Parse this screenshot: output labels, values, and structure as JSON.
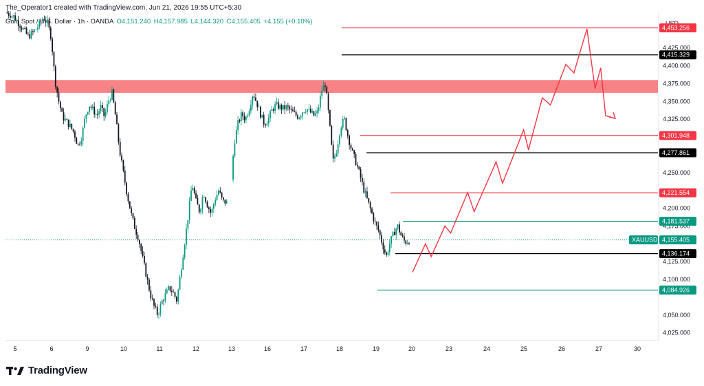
{
  "header": {
    "attribution": "The_Operator1 created with TradingView.com, Jun 21, 2026 19:55 UTC+5:30"
  },
  "symbol": {
    "name": "Gold Spot / U.S. Dollar · 1h · OANDA",
    "open": "O4,151.240",
    "high": "H4,157.985",
    "low": "L4,144.320",
    "close": "C4,155.405",
    "change": "+4.155 (+0.10%)"
  },
  "currency": "USD",
  "brand": "TradingView",
  "colors": {
    "bull": "#089981",
    "bear": "#131722",
    "resistance": "#f23645",
    "zone": "#f77c80",
    "support": "#089981",
    "neutral": "#000000"
  },
  "chart_data": {
    "type": "candlestick",
    "symbol": "XAUUSD",
    "current_price": 4155.405,
    "price_labels": [
      {
        "label": "4,453.256",
        "value": 4453.256,
        "kind": "resistance"
      },
      {
        "label": "4,415.329",
        "value": 4415.329,
        "kind": "neutral"
      },
      {
        "label": "4,301.948",
        "value": 4301.948,
        "kind": "resistance"
      },
      {
        "label": "4,277.861",
        "value": 4277.861,
        "kind": "neutral"
      },
      {
        "label": "4,221.554",
        "value": 4221.554,
        "kind": "resistance"
      },
      {
        "label": "4,181.537",
        "value": 4181.537,
        "kind": "support"
      },
      {
        "label": "4,155.405",
        "value": 4155.405,
        "kind": "current"
      },
      {
        "label": "4,136.174",
        "value": 4136.174,
        "kind": "neutral"
      },
      {
        "label": "4,084.926",
        "value": 4084.926,
        "kind": "support"
      }
    ],
    "y_ticks": [
      "4,425.000",
      "4,400.000",
      "4,375.000",
      "4,350.000",
      "4,325.000",
      "4,250.000",
      "4,200.000",
      "4,175.000",
      "4,125.000",
      "4,100.000",
      "4,050.000",
      "4,025.000"
    ],
    "y_range": [
      4014,
      4475
    ],
    "x_ticks": [
      "5",
      "6",
      "9",
      "10",
      "11",
      "12",
      "13",
      "16",
      "17",
      "18",
      "19",
      "20",
      "23",
      "24",
      "25",
      "26",
      "27",
      "30"
    ],
    "resistance_zone": [
      4362,
      4380
    ],
    "price_path": [
      [
        0,
        4475
      ],
      [
        2,
        4470
      ],
      [
        4,
        4456
      ],
      [
        6,
        4441
      ],
      [
        8,
        4451
      ],
      [
        10,
        4468
      ],
      [
        11,
        4460
      ],
      [
        12,
        4440
      ],
      [
        13,
        4380
      ],
      [
        14,
        4350
      ],
      [
        15,
        4328
      ],
      [
        16,
        4322
      ],
      [
        17,
        4315
      ],
      [
        18,
        4306
      ],
      [
        19,
        4288
      ],
      [
        20,
        4300
      ],
      [
        21,
        4330
      ],
      [
        22,
        4345
      ],
      [
        23,
        4338
      ],
      [
        24,
        4330
      ],
      [
        25,
        4342
      ],
      [
        26,
        4328
      ],
      [
        27,
        4350
      ],
      [
        28,
        4362
      ],
      [
        29,
        4325
      ],
      [
        30,
        4280
      ],
      [
        31,
        4248
      ],
      [
        32,
        4218
      ],
      [
        33,
        4192
      ],
      [
        34,
        4172
      ],
      [
        35,
        4156
      ],
      [
        36,
        4130
      ],
      [
        37,
        4105
      ],
      [
        38,
        4080
      ],
      [
        39,
        4062
      ],
      [
        40,
        4050
      ],
      [
        41,
        4068
      ],
      [
        42,
        4078
      ],
      [
        43,
        4088
      ],
      [
        44,
        4082
      ],
      [
        45,
        4070
      ],
      [
        46,
        4110
      ],
      [
        47,
        4150
      ],
      [
        48,
        4190
      ],
      [
        49,
        4235
      ],
      [
        50,
        4210
      ],
      [
        51,
        4195
      ],
      [
        52,
        4222
      ],
      [
        53,
        4205
      ],
      [
        54,
        4192
      ],
      [
        55,
        4212
      ],
      [
        56,
        4225
      ],
      [
        57,
        4210
      ],
      [
        58,
        4208
      ],
      [
        59,
        4212
      ],
      [
        60,
        4290
      ],
      [
        61,
        4318
      ],
      [
        62,
        4332
      ],
      [
        63,
        4325
      ],
      [
        64,
        4340
      ],
      [
        65,
        4362
      ],
      [
        66,
        4348
      ],
      [
        67,
        4332
      ],
      [
        68,
        4318
      ],
      [
        69,
        4325
      ],
      [
        70,
        4338
      ],
      [
        71,
        4345
      ],
      [
        72,
        4342
      ],
      [
        73,
        4340
      ],
      [
        74,
        4342
      ],
      [
        75,
        4336
      ],
      [
        76,
        4332
      ],
      [
        77,
        4328
      ],
      [
        78,
        4336
      ],
      [
        79,
        4340
      ],
      [
        80,
        4335
      ],
      [
        81,
        4330
      ],
      [
        82,
        4335
      ],
      [
        83,
        4365
      ],
      [
        84,
        4375
      ],
      [
        85,
        4325
      ],
      [
        86,
        4265
      ],
      [
        87,
        4282
      ],
      [
        88,
        4315
      ],
      [
        89,
        4325
      ],
      [
        90,
        4300
      ],
      [
        91,
        4280
      ],
      [
        92,
        4265
      ],
      [
        93,
        4248
      ],
      [
        94,
        4228
      ],
      [
        95,
        4212
      ],
      [
        96,
        4196
      ],
      [
        97,
        4180
      ],
      [
        98,
        4168
      ],
      [
        99,
        4150
      ],
      [
        100,
        4132
      ],
      [
        101,
        4152
      ],
      [
        102,
        4165
      ],
      [
        103,
        4175
      ],
      [
        104,
        4160
      ],
      [
        105,
        4152
      ],
      [
        106,
        4155
      ]
    ],
    "projection": [
      [
        4160,
        4110
      ],
      [
        4176,
        4150
      ],
      [
        4183,
        4132
      ],
      [
        4200,
        4175
      ],
      [
        4207,
        4165
      ],
      [
        4228,
        4222
      ],
      [
        4236,
        4195
      ],
      [
        4263,
        4265
      ],
      [
        4271,
        4235
      ],
      [
        4297,
        4310
      ],
      [
        4303,
        4282
      ],
      [
        4320,
        4355
      ],
      [
        4330,
        4345
      ],
      [
        4349,
        4402
      ],
      [
        4359,
        4390
      ],
      [
        4375,
        4452
      ],
      [
        4385,
        4368
      ],
      [
        4392,
        4397
      ],
      [
        4398,
        4330
      ],
      [
        4410,
        4326
      ]
    ],
    "xlabel": "",
    "ylabel": ""
  }
}
